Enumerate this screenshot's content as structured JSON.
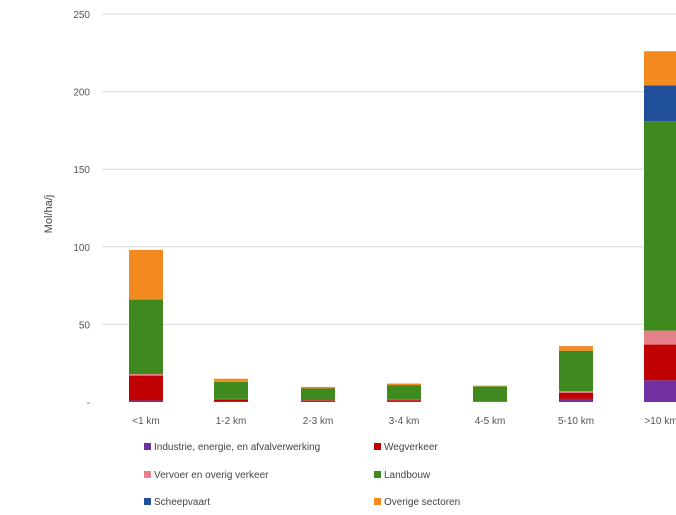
{
  "chart_data": {
    "type": "bar",
    "stacked": true,
    "ylabel": "Mol/ha/j",
    "ylim": [
      0,
      250
    ],
    "yticks": [
      "250",
      "200",
      "150",
      "100",
      "50",
      "-"
    ],
    "ytick_values": [
      250,
      200,
      150,
      100,
      50,
      0
    ],
    "grid": true,
    "legend_position": "bottom",
    "categories": [
      "<1 km",
      "1-2 km",
      "2-3 km",
      "3-4 km",
      "4-5 km",
      "5-10 km",
      ">10 km"
    ],
    "series": [
      {
        "name": "Industrie, energie, en afvalverwerking",
        "color": "#7030a0",
        "values": [
          1,
          0.3,
          0.2,
          0.2,
          0.1,
          2,
          14
        ]
      },
      {
        "name": "Wegverkeer",
        "color": "#c00000",
        "values": [
          16,
          1.5,
          0.8,
          1,
          0.4,
          4,
          23
        ]
      },
      {
        "name": "Vervoer en overig verkeer",
        "color": "#e6808a",
        "values": [
          1,
          0.2,
          0.2,
          0.2,
          0.1,
          1,
          9
        ]
      },
      {
        "name": "Landbouw",
        "color": "#3f8a1f",
        "values": [
          48,
          11,
          7.5,
          9.5,
          9.5,
          26,
          135
        ]
      },
      {
        "name": "Scheepvaart",
        "color": "#1f4e9a",
        "values": [
          0,
          0,
          0,
          0,
          0,
          0,
          23
        ]
      },
      {
        "name": "Overige sectoren",
        "color": "#f28a1f",
        "values": [
          32,
          2,
          1,
          1,
          0.4,
          3,
          22
        ]
      }
    ]
  }
}
